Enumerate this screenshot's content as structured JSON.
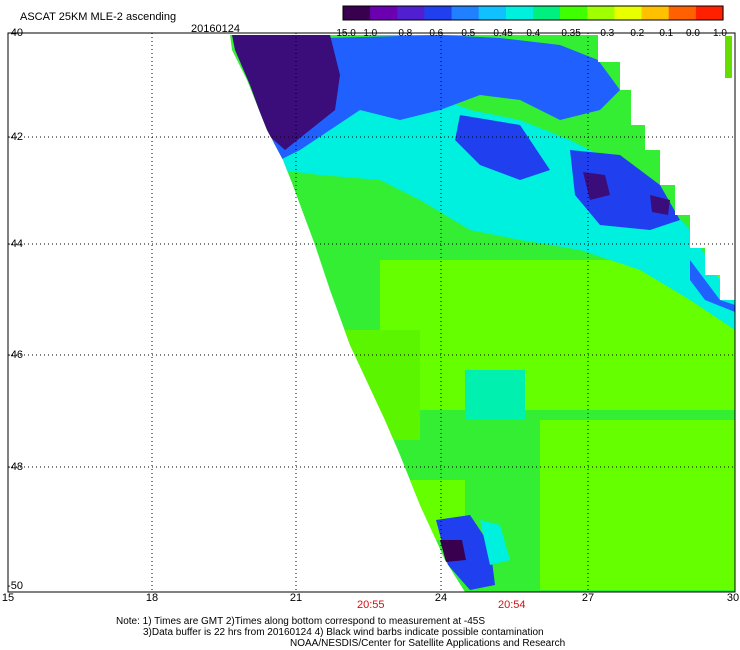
{
  "header": {
    "title": "ASCAT 25KM MLE-2 ascending",
    "date": "20160124"
  },
  "colorbar": {
    "labels": [
      "-15.0",
      "-1.0",
      "-0.8",
      "-0.6",
      "-0.5",
      "-0.45",
      "-0.4",
      "-0.35",
      "-0.3",
      "-0.2",
      "-0.1",
      "0.0",
      "1.0"
    ],
    "colors": [
      "#3a0050",
      "#6a00b0",
      "#5020d0",
      "#2040f0",
      "#2080ff",
      "#10c0ff",
      "#00f0e0",
      "#00f080",
      "#40ff00",
      "#a0ff00",
      "#e8ff00",
      "#ffc000",
      "#ff6000",
      "#ff2000"
    ]
  },
  "axes": {
    "y_ticks": [
      "-40",
      "-42",
      "-44",
      "-46",
      "-48",
      "-50"
    ],
    "x_ticks": [
      "15",
      "18",
      "21",
      "24",
      "27",
      "30"
    ]
  },
  "times": [
    "20:55",
    "20:54"
  ],
  "notes": {
    "line1": "Note: 1) Times are GMT 2)Times along bottom correspond to measurement at -45S",
    "line2": "3)Data buffer is 22 hrs from 20160124 4) Black wind barbs indicate possible contamination",
    "line3": "NOAA/NESDIS/Center for Satellite Applications and Research"
  }
}
